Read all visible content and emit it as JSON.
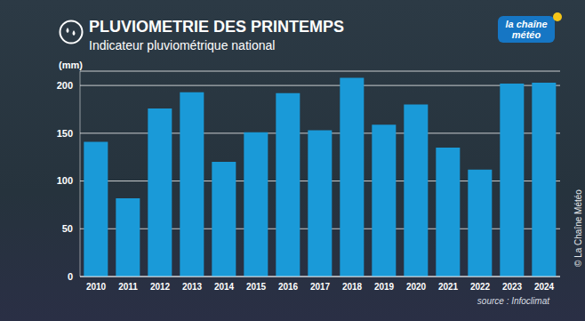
{
  "chart_data": {
    "type": "bar",
    "title": "PLUVIOMETRIE DES PRINTEMPS",
    "subtitle": "Indicateur pluviométrique national",
    "y_label": "(mm)",
    "annotations": [
      "source : Infoclimat",
      "© La Chaîne Météo",
      "la chaîne météo"
    ],
    "categories": [
      "2010",
      "2011",
      "2012",
      "2013",
      "2014",
      "2015",
      "2016",
      "2017",
      "2018",
      "2019",
      "2020",
      "2021",
      "2022",
      "2023",
      "2024"
    ],
    "values": [
      141,
      82,
      176,
      193,
      120,
      151,
      192,
      153,
      208,
      159,
      180,
      135,
      112,
      202,
      203
    ],
    "color": "#1a9ad8",
    "ylim": [
      0,
      215
    ],
    "yticks": [
      0,
      50,
      100,
      150,
      200
    ],
    "grid": true
  }
}
